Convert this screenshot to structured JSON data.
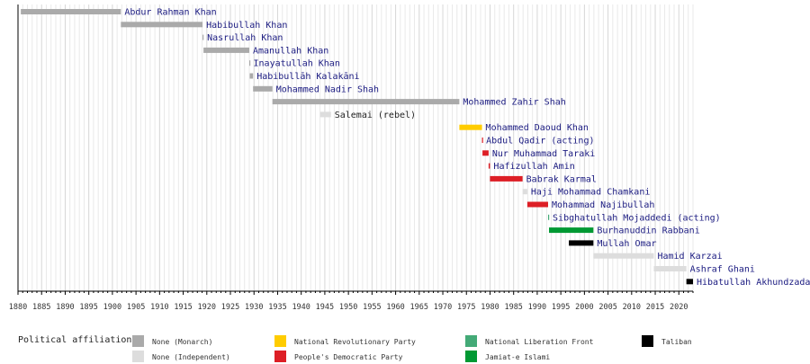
{
  "chart_data": {
    "type": "timeline",
    "title": "",
    "xlabel": "",
    "ylabel": "",
    "xlim": [
      1880,
      2023
    ],
    "grid": true,
    "x_ticks": [
      1880,
      1885,
      1890,
      1895,
      1900,
      1905,
      1910,
      1915,
      1920,
      1925,
      1930,
      1935,
      1940,
      1945,
      1950,
      1955,
      1960,
      1965,
      1970,
      1975,
      1980,
      1985,
      1990,
      1995,
      2000,
      2005,
      2010,
      2015,
      2020
    ],
    "parties": [
      {
        "key": "monarch",
        "name": "None (Monarch)",
        "color": "#aaaaaa"
      },
      {
        "key": "independent",
        "name": "None (Independent)",
        "color": "#dddddd"
      },
      {
        "key": "nrp",
        "name": "National Revolutionary Party",
        "color": "#ffcc00"
      },
      {
        "key": "pdp",
        "name": "People's Democratic Party",
        "color": "#dd1f26"
      },
      {
        "key": "nlf",
        "name": "National Liberation Front",
        "color": "#44aa77"
      },
      {
        "key": "jamiat",
        "name": "Jamiat-e Islami",
        "color": "#009933"
      },
      {
        "key": "taliban",
        "name": "Taliban",
        "color": "#000000"
      }
    ],
    "leaders": [
      {
        "name": "Abdur Rahman Khan",
        "start": 1880.6,
        "end": 1901.8,
        "party": "monarch"
      },
      {
        "name": "Habibullah Khan",
        "start": 1901.8,
        "end": 1919.1,
        "party": "monarch"
      },
      {
        "name": "Nasrullah Khan",
        "start": 1919.1,
        "end": 1919.3,
        "party": "monarch"
      },
      {
        "name": "Amanullah Khan",
        "start": 1919.3,
        "end": 1929.0,
        "party": "monarch"
      },
      {
        "name": "Inayatullah Khan",
        "start": 1929.0,
        "end": 1929.1,
        "party": "monarch"
      },
      {
        "name": "Habibullāh Kalakāni",
        "start": 1929.1,
        "end": 1929.8,
        "party": "monarch"
      },
      {
        "name": "Mohammed Nadir Shah",
        "start": 1929.8,
        "end": 1933.9,
        "party": "monarch"
      },
      {
        "name": "Mohammed Zahir Shah",
        "start": 1933.9,
        "end": 1973.5,
        "party": "monarch"
      },
      {
        "name": "Salemai (rebel)",
        "start": 1944.0,
        "end": 1946.3,
        "party": "independent"
      },
      {
        "name": "Mohammed Daoud Khan",
        "start": 1973.5,
        "end": 1978.3,
        "party": "nrp"
      },
      {
        "name": "Abdul Qadir (acting)",
        "start": 1978.3,
        "end": 1978.4,
        "party": "pdp"
      },
      {
        "name": "Nur Muhammad Taraki",
        "start": 1978.4,
        "end": 1979.7,
        "party": "pdp"
      },
      {
        "name": "Hafizullah Amin",
        "start": 1979.7,
        "end": 1979.99,
        "party": "pdp"
      },
      {
        "name": "Babrak Karmal",
        "start": 1979.99,
        "end": 1986.9,
        "party": "pdp"
      },
      {
        "name": "Haji Mohammad Chamkani",
        "start": 1986.9,
        "end": 1987.9,
        "party": "independent"
      },
      {
        "name": "Mohammad Najibullah",
        "start": 1987.9,
        "end": 1992.3,
        "party": "pdp"
      },
      {
        "name": "Sibghatullah Mojaddedi (acting)",
        "start": 1992.3,
        "end": 1992.5,
        "party": "nlf"
      },
      {
        "name": "Burhanuddin Rabbani",
        "start": 1992.5,
        "end": 2001.9,
        "party": "jamiat"
      },
      {
        "name": "Mullah Omar",
        "start": 1996.7,
        "end": 2001.9,
        "party": "taliban"
      },
      {
        "name": "Hamid Karzai",
        "start": 2001.9,
        "end": 2014.7,
        "party": "independent"
      },
      {
        "name": "Ashraf Ghani",
        "start": 2014.7,
        "end": 2021.6,
        "party": "independent"
      },
      {
        "name": "Hibatullah Akhundzada",
        "start": 2021.6,
        "end": 2023.0,
        "party": "taliban"
      }
    ]
  },
  "legend": {
    "title": "Political affiliation:"
  }
}
